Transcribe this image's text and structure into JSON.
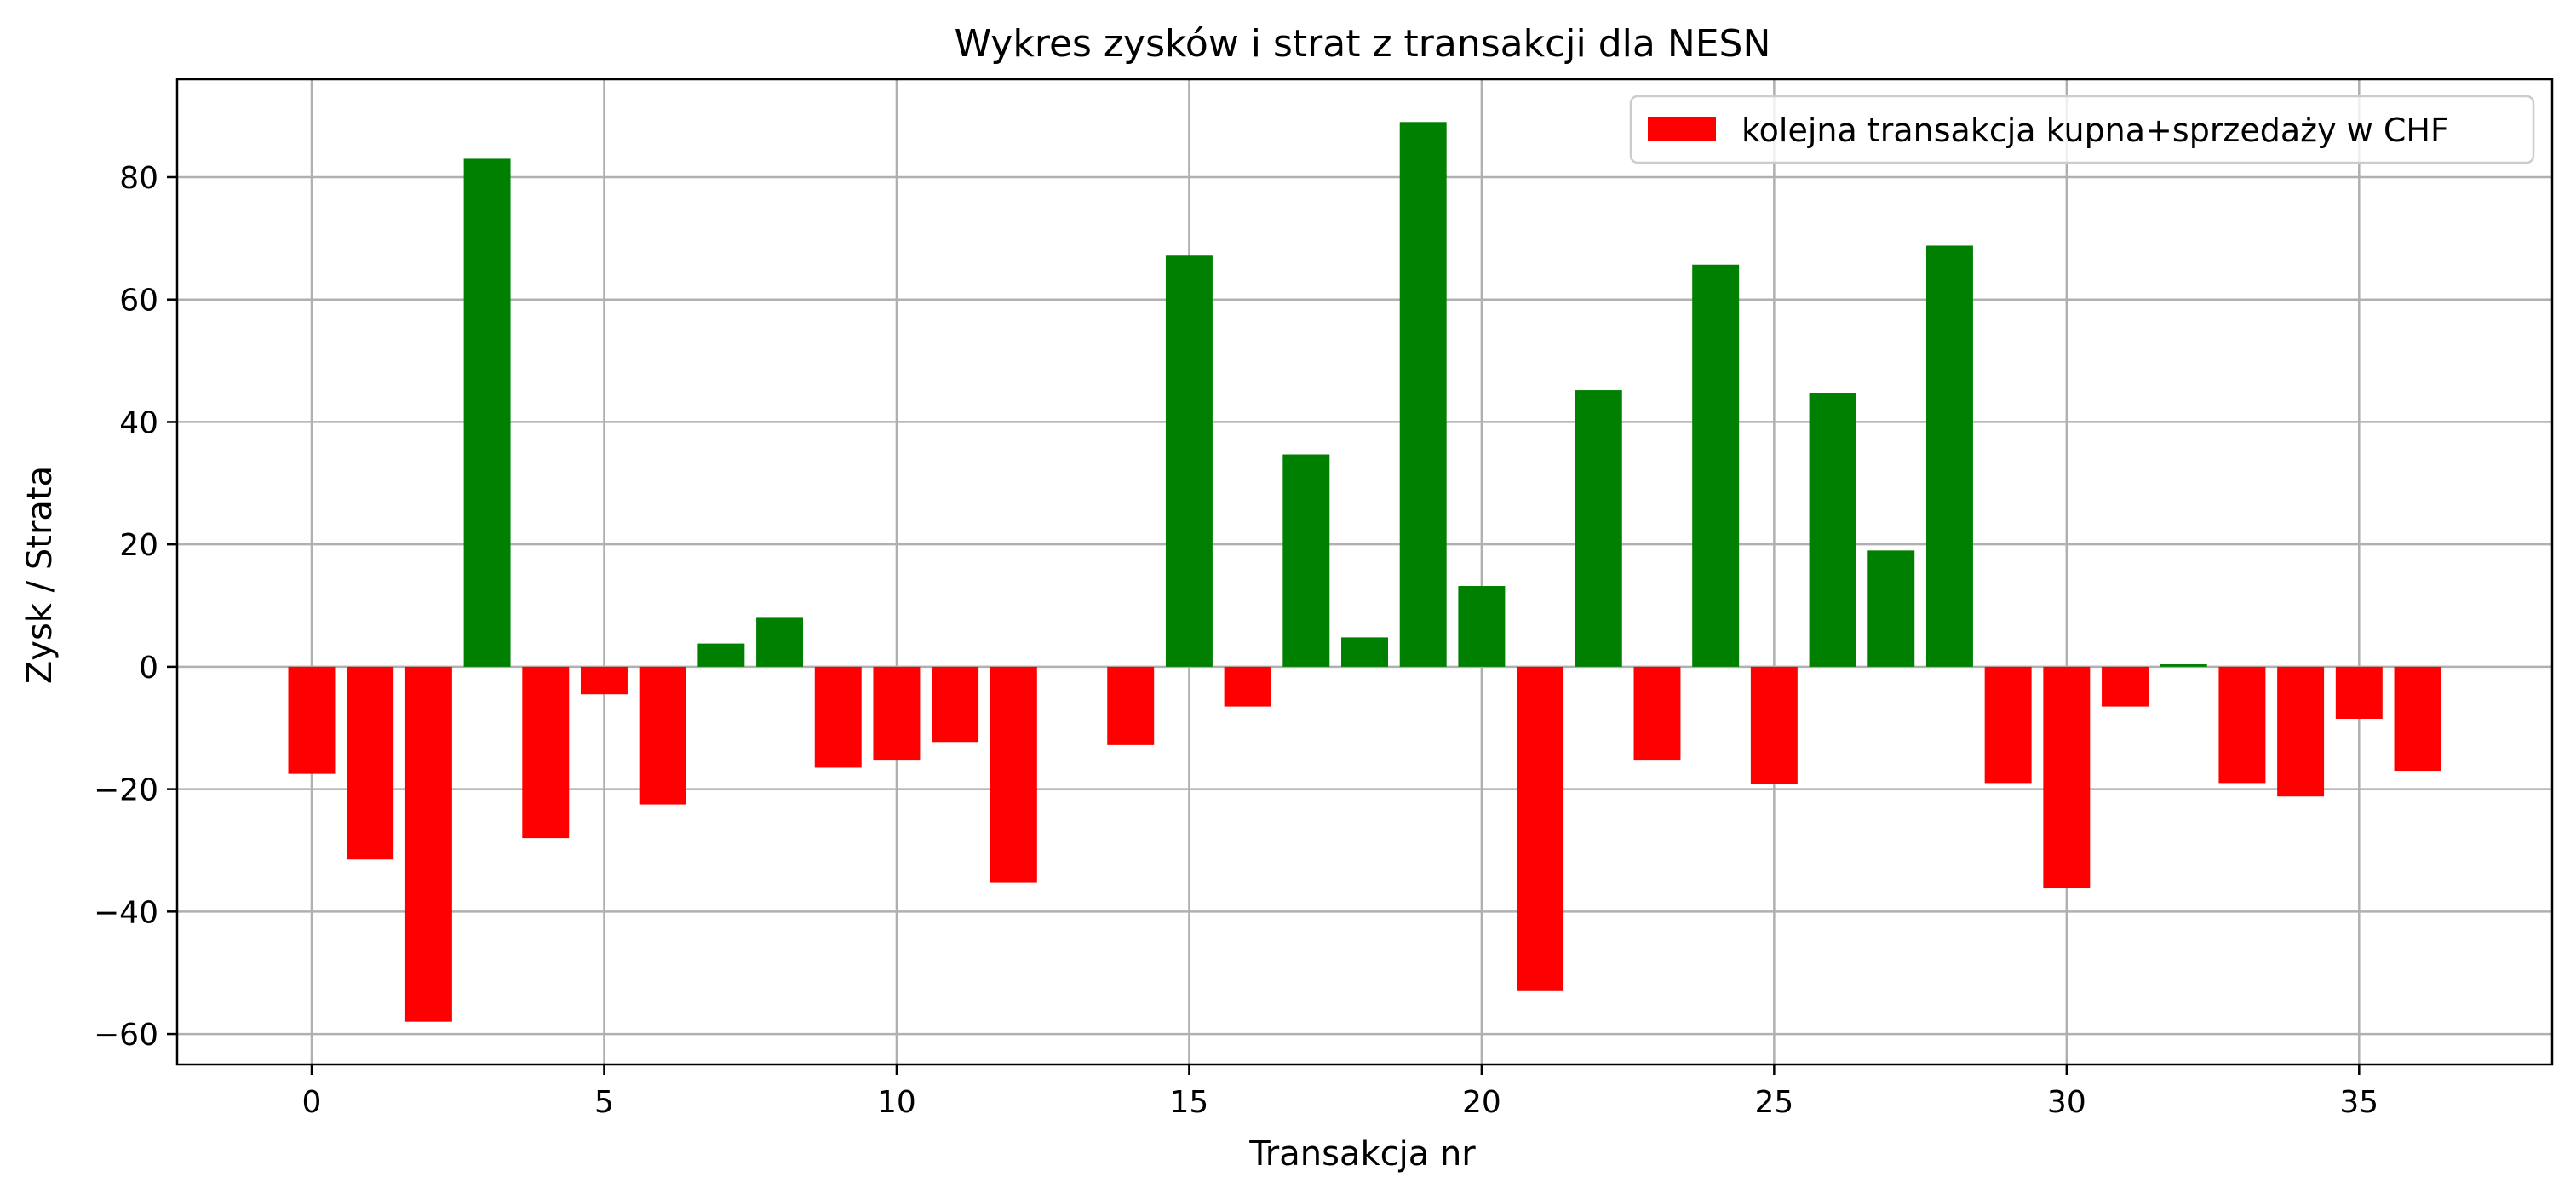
{
  "chart_data": {
    "type": "bar",
    "title": "Wykres zysków i strat z transakcji dla NESN",
    "xlabel": "Transakcja nr",
    "ylabel": "Zysk / Strata",
    "xlim": [
      -2.3,
      38.3
    ],
    "ylim": [
      -65,
      96
    ],
    "xticks": [
      0,
      5,
      10,
      15,
      20,
      25,
      30,
      35
    ],
    "yticks": [
      -60,
      -40,
      -20,
      0,
      20,
      40,
      60,
      80
    ],
    "grid": true,
    "legend": {
      "position": "top-right",
      "entries": [
        {
          "label": "kolejna transakcja kupna+sprzedaży w CHF",
          "color": "#ff0000"
        }
      ]
    },
    "colors": {
      "positive": "#008000",
      "negative": "#ff0000"
    },
    "x": [
      0,
      1,
      2,
      3,
      4,
      5,
      6,
      7,
      8,
      9,
      10,
      11,
      12,
      13,
      14,
      15,
      16,
      17,
      18,
      19,
      20,
      21,
      22,
      23,
      24,
      25,
      26,
      27,
      28,
      29,
      30,
      31,
      32,
      33,
      34,
      35,
      36
    ],
    "values": [
      -17.5,
      -31.5,
      -58,
      83,
      -28,
      -4.5,
      -22.5,
      3.8,
      8,
      -16.5,
      -15.2,
      -12.3,
      -35.3,
      0,
      -12.8,
      67.3,
      -6.5,
      34.7,
      4.8,
      89,
      13.2,
      -53,
      45.2,
      -15.2,
      65.7,
      -19.2,
      44.7,
      19,
      68.8,
      -19,
      -36.2,
      -6.5,
      0.4,
      -19,
      -21.2,
      -8.5,
      -17
    ]
  }
}
